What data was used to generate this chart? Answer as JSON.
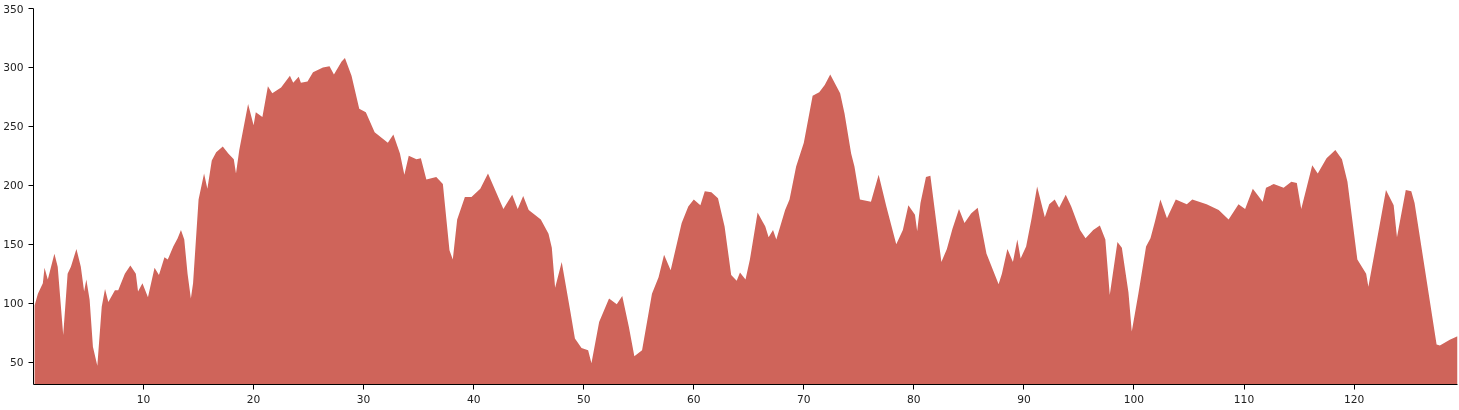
{
  "chart_data": {
    "type": "area",
    "color": "#cf645a",
    "x": [
      0.1,
      0.4,
      0.85,
      1.0,
      1.3,
      1.9,
      2.2,
      2.7,
      3.1,
      3.4,
      3.9,
      4.3,
      4.6,
      4.8,
      5.1,
      5.4,
      5.8,
      6.2,
      6.5,
      6.8,
      7.4,
      7.7,
      8.3,
      8.8,
      9.3,
      9.5,
      9.9,
      10.4,
      11.0,
      11.4,
      11.9,
      12.2,
      12.7,
      13.1,
      13.4,
      13.7,
      14.0,
      14.3,
      14.5,
      15.0,
      15.5,
      15.8,
      16.2,
      16.6,
      17.2,
      17.7,
      18.2,
      18.4,
      18.7,
      19.5,
      20.0,
      20.2,
      20.8,
      21.3,
      21.7,
      22.5,
      23.3,
      23.6,
      24.1,
      24.3,
      24.9,
      25.4,
      26.3,
      26.9,
      27.3,
      28.0,
      28.3,
      28.9,
      29.6,
      30.2,
      31.0,
      32.2,
      32.7,
      33.3,
      33.7,
      34.1,
      34.8,
      35.2,
      35.7,
      36.6,
      37.2,
      37.8,
      38.1,
      38.5,
      39.2,
      39.8,
      40.6,
      41.3,
      42.0,
      42.7,
      43.5,
      44.0,
      44.5,
      45.0,
      46.1,
      46.8,
      47.1,
      47.4,
      48.0,
      48.8,
      49.2,
      49.8,
      50.4,
      50.7,
      51.4,
      52.3,
      53.0,
      53.5,
      54.1,
      54.6,
      55.3,
      56.2,
      56.8,
      57.3,
      57.9,
      58.9,
      59.5,
      60.0,
      60.6,
      61.0,
      61.6,
      62.2,
      62.8,
      63.4,
      63.9,
      64.2,
      64.7,
      65.1,
      65.8,
      66.5,
      66.8,
      67.2,
      67.5,
      68.3,
      68.7,
      69.3,
      70.0,
      70.8,
      71.4,
      71.9,
      72.4,
      73.3,
      73.7,
      74.3,
      74.6,
      75.1,
      76.1,
      76.8,
      77.5,
      78.4,
      79.0,
      79.5,
      80.1,
      80.3,
      80.6,
      81.1,
      81.5,
      82.5,
      83.0,
      83.5,
      84.1,
      84.6,
      85.2,
      85.8,
      86.6,
      87.7,
      88.0,
      88.5,
      89.0,
      89.4,
      89.7,
      90.2,
      90.7,
      91.2,
      91.9,
      92.3,
      92.8,
      93.2,
      93.8,
      94.3,
      95.1,
      95.6,
      96.3,
      96.9,
      97.4,
      97.8,
      98.5,
      98.9,
      99.5,
      99.8,
      100.4,
      101.1,
      101.5,
      101.9,
      102.4,
      103.0,
      103.8,
      104.8,
      105.3,
      106.6,
      107.7,
      108.6,
      109.5,
      110.1,
      110.8,
      111.7,
      112.0,
      112.7,
      113.6,
      114.3,
      114.8,
      115.2,
      116.2,
      116.7,
      117.5,
      118.3,
      118.9,
      119.4,
      120.3,
      121.1,
      121.3,
      122.3,
      122.9,
      123.6,
      123.9,
      124.7,
      125.2,
      125.5,
      127.5,
      127.8,
      128.7,
      129.4
    ],
    "values": [
      98,
      108,
      117,
      130,
      120,
      142,
      131,
      73,
      125,
      131,
      146,
      131,
      110,
      120,
      103,
      63,
      47,
      97,
      112,
      101,
      111,
      111,
      125,
      132,
      125,
      110,
      117,
      105,
      130,
      124,
      139,
      137,
      148,
      155,
      162,
      154,
      125,
      104,
      117,
      188,
      210,
      197,
      221,
      228,
      233,
      227,
      222,
      210,
      230,
      269,
      251,
      262,
      258,
      284,
      278,
      283,
      293,
      287,
      292,
      287,
      288,
      296,
      300,
      301,
      294,
      305,
      308,
      293,
      265,
      262,
      245,
      236,
      243,
      227,
      209,
      225,
      222,
      223,
      205,
      207,
      201,
      145,
      137,
      171,
      190,
      190,
      197,
      210,
      195,
      180,
      192,
      180,
      191,
      179,
      171,
      159,
      147,
      113,
      135,
      92,
      70,
      62,
      60,
      49,
      84,
      104,
      99,
      106,
      80,
      55,
      60,
      108,
      122,
      141,
      128,
      168,
      182,
      188,
      183,
      195,
      194,
      189,
      165,
      124,
      119,
      126,
      120,
      137,
      177,
      165,
      156,
      162,
      154,
      179,
      188,
      216,
      236,
      276,
      279,
      285,
      294,
      278,
      261,
      227,
      216,
      188,
      186,
      209,
      182,
      150,
      162,
      183,
      175,
      161,
      185,
      207,
      208,
      135,
      146,
      163,
      180,
      168,
      176,
      181,
      142,
      116,
      125,
      146,
      135,
      154,
      138,
      148,
      172,
      199,
      173,
      184,
      188,
      181,
      192,
      182,
      162,
      155,
      162,
      166,
      154,
      107,
      152,
      147,
      109,
      76,
      108,
      148,
      155,
      169,
      188,
      172,
      188,
      184,
      188,
      184,
      179,
      171,
      184,
      180,
      197,
      186,
      198,
      201,
      198,
      203,
      202,
      180,
      217,
      210,
      223,
      230,
      222,
      203,
      137,
      125,
      114,
      165,
      196,
      183,
      156,
      196,
      195,
      185,
      65,
      64,
      69,
      72
    ],
    "xlim": [
      0,
      129.4
    ],
    "ylim": [
      31,
      350
    ],
    "xticks": [
      10,
      20,
      30,
      40,
      50,
      60,
      70,
      80,
      90,
      100,
      110,
      120
    ],
    "yticks": [
      50,
      100,
      150,
      200,
      250,
      300,
      350
    ],
    "grid": false
  }
}
